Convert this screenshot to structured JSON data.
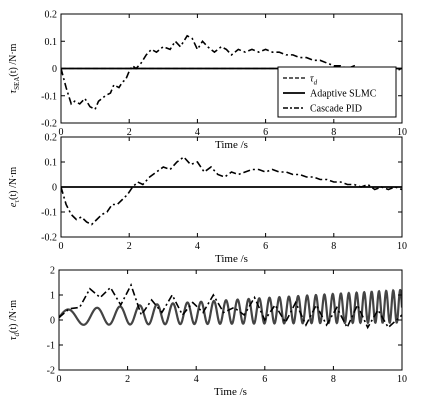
{
  "chart_data": [
    {
      "type": "line",
      "xlabel": "Time /s",
      "ylabel_main": "τ",
      "ylabel_sub": "SEA",
      "ylabel_rest": "(t) /N·m",
      "xlim": [
        0,
        10
      ],
      "ylim": [
        -0.2,
        0.2
      ],
      "xticks": [
        "0",
        "2",
        "4",
        "6",
        "8",
        "10"
      ],
      "yticks": [
        "-0.2",
        "-0.1",
        "0",
        "0.1",
        "0.2"
      ],
      "legend": {
        "position": "inside-right",
        "entries": [
          {
            "main": "τ",
            "sub": "d",
            "style": "dashed"
          },
          {
            "main": "Adaptive SLMC",
            "sub": "",
            "style": "solid"
          },
          {
            "main": "Cascade PID",
            "sub": "",
            "style": "dashdot"
          }
        ]
      },
      "series": [
        {
          "name": "τd",
          "style": "dashed",
          "x": [
            0,
            10
          ],
          "y": [
            0,
            0
          ]
        },
        {
          "name": "Adaptive SLMC",
          "style": "solid",
          "x": [
            0,
            10
          ],
          "y": [
            0,
            0
          ]
        },
        {
          "name": "Cascade PID",
          "style": "dashdot",
          "x": [
            0,
            0.15,
            0.3,
            0.4,
            0.55,
            0.7,
            0.85,
            1.0,
            1.1,
            1.3,
            1.45,
            1.55,
            1.7,
            1.8,
            1.9,
            2.0,
            2.1,
            2.2,
            2.35,
            2.5,
            2.65,
            2.8,
            3.0,
            3.2,
            3.35,
            3.5,
            3.7,
            3.85,
            4.0,
            4.15,
            4.3,
            4.5,
            4.7,
            4.85,
            5.0,
            5.2,
            5.4,
            5.6,
            5.8,
            6.0,
            6.2,
            6.4,
            6.6,
            6.8,
            7.0,
            7.2,
            7.4,
            7.6,
            7.8,
            8.0,
            8.2,
            8.4,
            8.6,
            8.8,
            9.0,
            9.2,
            9.4,
            9.6,
            9.8,
            10.0
          ],
          "y": [
            0,
            -0.07,
            -0.13,
            -0.12,
            -0.13,
            -0.11,
            -0.14,
            -0.15,
            -0.12,
            -0.1,
            -0.09,
            -0.06,
            -0.07,
            -0.05,
            -0.04,
            -0.01,
            0.01,
            0.0,
            0.02,
            0.05,
            0.07,
            0.06,
            0.08,
            0.07,
            0.1,
            0.08,
            0.12,
            0.11,
            0.07,
            0.1,
            0.08,
            0.06,
            0.08,
            0.07,
            0.05,
            0.07,
            0.06,
            0.07,
            0.06,
            0.07,
            0.06,
            0.06,
            0.05,
            0.05,
            0.04,
            0.04,
            0.03,
            0.03,
            0.02,
            0.01,
            0.01,
            0.0,
            0.01,
            -0.01,
            0.0,
            -0.01,
            -0.01,
            0.0,
            -0.01,
            0.0
          ]
        }
      ]
    },
    {
      "type": "line",
      "xlabel": "Time /s",
      "ylabel_main": "e",
      "ylabel_sub": "τ",
      "ylabel_rest": "(t) /N·m",
      "xlim": [
        0,
        10
      ],
      "ylim": [
        -0.2,
        0.2
      ],
      "xticks": [
        "0",
        "2",
        "4",
        "6",
        "8",
        "10"
      ],
      "yticks": [
        "-0.2",
        "-0.1",
        "0",
        "0.1",
        "0.2"
      ],
      "series": [
        {
          "name": "Adaptive SLMC",
          "style": "solid",
          "x": [
            0,
            10
          ],
          "y": [
            0,
            0
          ]
        },
        {
          "name": "Cascade PID",
          "style": "dashdot",
          "x": [
            0,
            0.15,
            0.3,
            0.45,
            0.6,
            0.75,
            0.9,
            1.05,
            1.2,
            1.35,
            1.5,
            1.65,
            1.8,
            1.95,
            2.1,
            2.25,
            2.4,
            2.6,
            2.8,
            3.0,
            3.2,
            3.4,
            3.6,
            3.8,
            4.0,
            4.2,
            4.4,
            4.6,
            4.8,
            5.0,
            5.2,
            5.4,
            5.6,
            5.8,
            6.0,
            6.2,
            6.4,
            6.6,
            6.8,
            7.0,
            7.2,
            7.4,
            7.6,
            7.8,
            8.0,
            8.2,
            8.4,
            8.6,
            8.8,
            9.0,
            9.2,
            9.4,
            9.6,
            9.8,
            10.0
          ],
          "y": [
            0,
            -0.07,
            -0.11,
            -0.13,
            -0.12,
            -0.14,
            -0.15,
            -0.13,
            -0.11,
            -0.1,
            -0.07,
            -0.07,
            -0.05,
            -0.03,
            0.0,
            0.02,
            0.01,
            0.04,
            0.06,
            0.08,
            0.07,
            0.1,
            0.12,
            0.09,
            0.1,
            0.06,
            0.08,
            0.05,
            0.04,
            0.06,
            0.05,
            0.06,
            0.07,
            0.07,
            0.06,
            0.07,
            0.06,
            0.06,
            0.05,
            0.05,
            0.04,
            0.04,
            0.03,
            0.03,
            0.02,
            0.02,
            0.01,
            0.01,
            0.0,
            0.01,
            -0.01,
            0.0,
            -0.01,
            0.0,
            -0.01
          ]
        }
      ]
    },
    {
      "type": "line",
      "xlabel": "Time /s",
      "ylabel_main": "τ",
      "ylabel_sub": "d",
      "ylabel_rest": "(t) /N·m",
      "xlim": [
        0,
        10
      ],
      "ylim": [
        -2,
        2
      ],
      "xticks": [
        "0",
        "2",
        "4",
        "6",
        "8",
        "10"
      ],
      "yticks": [
        "-2",
        "-1",
        "0",
        "1",
        "2"
      ],
      "series": [
        {
          "name": "Adaptive SLMC",
          "style": "solid",
          "generator": {
            "type": "chirp",
            "base_start": 0.1,
            "base_end": 0.55,
            "amp_start": 0.3,
            "amp_end": 0.65,
            "freq_start": 0.9,
            "freq_end": 5.0
          }
        },
        {
          "name": "Cascade PID",
          "style": "dashdot",
          "x": [
            0,
            0.3,
            0.6,
            0.9,
            1.2,
            1.5,
            1.8,
            2.1,
            2.4,
            2.7,
            3.0,
            3.3,
            3.6,
            3.9,
            4.2,
            4.5,
            4.8,
            5.1,
            5.4,
            5.7,
            6.0,
            6.3,
            6.6,
            6.9,
            7.2,
            7.5,
            7.8,
            8.1,
            8.4,
            8.7,
            9.0,
            9.3,
            9.6,
            10.0
          ],
          "y": [
            0.1,
            0.45,
            0.5,
            1.25,
            0.9,
            1.3,
            0.6,
            1.4,
            0.2,
            0.8,
            0.3,
            1.0,
            0.2,
            0.7,
            0.3,
            1.0,
            0.3,
            0.5,
            0.2,
            0.9,
            0.0,
            0.6,
            -0.1,
            0.7,
            -0.2,
            0.6,
            -0.2,
            0.5,
            -0.3,
            0.6,
            -0.3,
            0.4,
            -0.3,
            0.2
          ]
        }
      ]
    }
  ]
}
